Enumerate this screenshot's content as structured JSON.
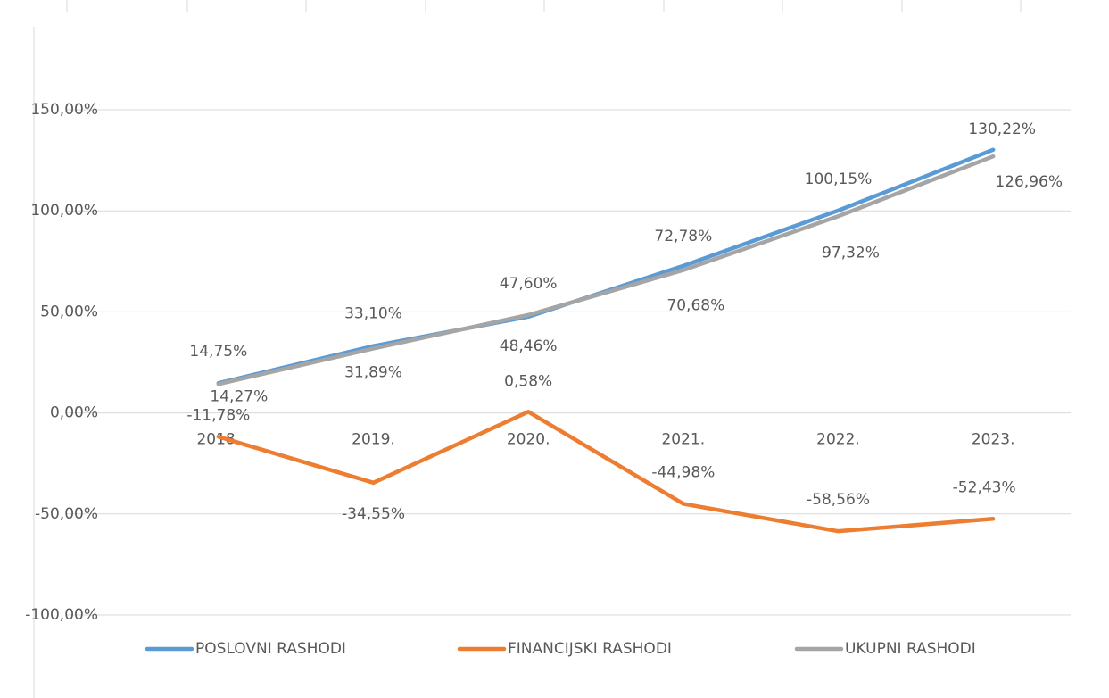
{
  "chart_data": {
    "type": "line",
    "categories": [
      "2018.",
      "2019.",
      "2020.",
      "2021.",
      "2022.",
      "2023."
    ],
    "series": [
      {
        "name": "POSLOVNI RASHODI",
        "color": "#5b9bd5",
        "values": [
          14.75,
          33.1,
          47.6,
          72.78,
          100.15,
          130.22
        ],
        "value_labels": [
          "14,75%",
          "33,10%",
          "47,60%",
          "72,78%",
          "100,15%",
          "130,22%"
        ]
      },
      {
        "name": "FINANCIJSKI RASHODI",
        "color": "#ed7d31",
        "values": [
          -11.78,
          -34.55,
          0.58,
          -44.98,
          -58.56,
          -52.43
        ],
        "value_labels": [
          "-11,78%",
          "-34,55%",
          "0,58%",
          "-44,98%",
          "-58,56%",
          "-52,43%"
        ]
      },
      {
        "name": "UKUPNI RASHODI",
        "color": "#a5a5a5",
        "values": [
          14.27,
          31.89,
          48.46,
          70.68,
          97.32,
          126.96
        ],
        "value_labels": [
          "14,27%",
          "31,89%",
          "48,46%",
          "70,68%",
          "97,32%",
          "126,96%"
        ]
      }
    ],
    "ylim": [
      -100,
      150
    ],
    "yticks": [
      {
        "value": -100,
        "label": "-100,00%"
      },
      {
        "value": -50,
        "label": "-50,00%"
      },
      {
        "value": 0,
        "label": "0,00%"
      },
      {
        "value": 50,
        "label": "50,00%"
      },
      {
        "value": 100,
        "label": "100,00%"
      },
      {
        "value": 150,
        "label": "150,00%"
      }
    ],
    "grid": true,
    "legend": "bottom"
  }
}
